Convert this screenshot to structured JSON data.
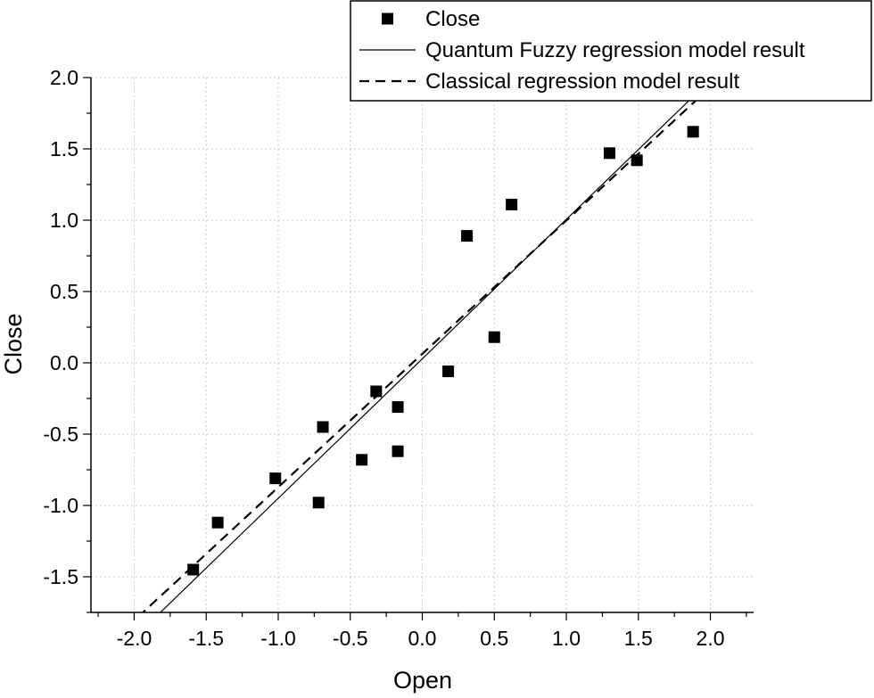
{
  "chart_data": {
    "type": "scatter",
    "title": "",
    "xlabel": "Open",
    "ylabel": "Close",
    "xlim": [
      -2.3,
      2.3
    ],
    "ylim": [
      -1.75,
      2.0
    ],
    "x_ticks": [
      -2.0,
      -1.5,
      -1.0,
      -0.5,
      0.0,
      0.5,
      1.0,
      1.5,
      2.0
    ],
    "y_ticks": [
      -1.5,
      -1.0,
      -0.5,
      0.0,
      0.5,
      1.0,
      1.5,
      2.0
    ],
    "x_tick_labels": [
      "-2.0",
      "-1.5",
      "-1.0",
      "-0.5",
      "0.0",
      "0.5",
      "1.0",
      "1.5",
      "2.0"
    ],
    "y_tick_labels": [
      "-1.5",
      "-1.0",
      "-0.5",
      "0.0",
      "0.5",
      "1.0",
      "1.5",
      "2.0"
    ],
    "grid": true,
    "legend_position": "top-right",
    "series": [
      {
        "name": "Close",
        "kind": "scatter",
        "marker": "square",
        "color": "#000000",
        "points": [
          [
            -1.59,
            -1.45
          ],
          [
            -1.42,
            -1.12
          ],
          [
            -1.02,
            -0.81
          ],
          [
            -0.72,
            -0.98
          ],
          [
            -0.69,
            -0.45
          ],
          [
            -0.42,
            -0.68
          ],
          [
            -0.32,
            -0.2
          ],
          [
            -0.17,
            -0.31
          ],
          [
            -0.17,
            -0.62
          ],
          [
            0.18,
            -0.06
          ],
          [
            0.31,
            0.89
          ],
          [
            0.5,
            0.18
          ],
          [
            0.62,
            1.11
          ],
          [
            1.3,
            1.47
          ],
          [
            1.49,
            1.42
          ],
          [
            1.88,
            1.62
          ]
        ]
      },
      {
        "name": "Quantum Fuzzy regression model result",
        "kind": "line",
        "style": "solid",
        "color": "#000000",
        "slope": 0.978,
        "intercept": 0.028
      },
      {
        "name": "Classical regression model result",
        "kind": "line",
        "style": "dashed",
        "color": "#000000",
        "slope": 0.935,
        "intercept": 0.063
      }
    ]
  }
}
